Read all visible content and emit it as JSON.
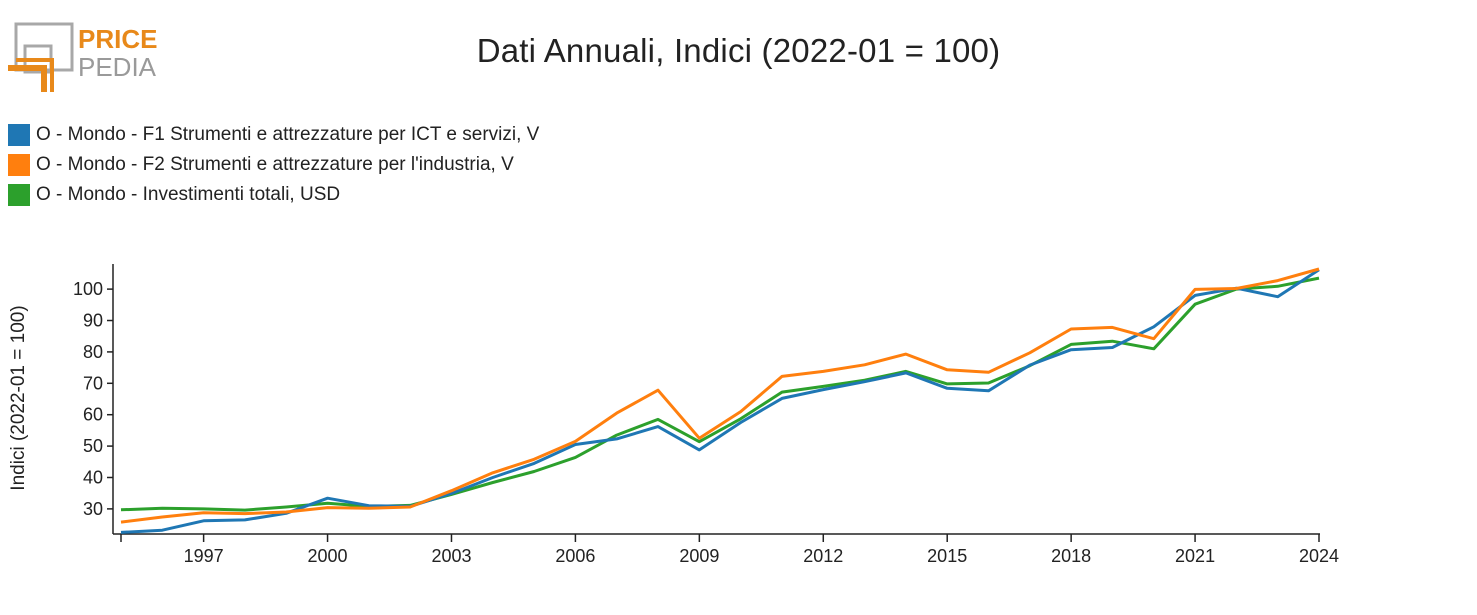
{
  "logo": {
    "line1": "PRICE",
    "line2": "PEDIA",
    "color_primary": "#E8891A",
    "color_secondary": "#9A9A9A"
  },
  "chart_data": {
    "type": "line",
    "title": "Dati Annuali, Indici (2022-01 = 100)",
    "ylabel": "Indici (2022-01 = 100)",
    "xlabel": "",
    "xlim": [
      1995,
      2024
    ],
    "ylim": [
      22,
      108
    ],
    "x_ticks": [
      1997,
      2000,
      2003,
      2006,
      2009,
      2012,
      2015,
      2018,
      2021,
      2024
    ],
    "y_ticks": [
      30,
      40,
      50,
      60,
      70,
      80,
      90,
      100
    ],
    "grid": false,
    "legend_position": "top-left",
    "x": [
      1995,
      1996,
      1997,
      1998,
      1999,
      2000,
      2001,
      2002,
      2003,
      2004,
      2005,
      2006,
      2007,
      2008,
      2009,
      2010,
      2011,
      2012,
      2013,
      2014,
      2015,
      2016,
      2017,
      2018,
      2019,
      2020,
      2021,
      2022,
      2023,
      2024
    ],
    "series": [
      {
        "name": "O - Mondo - F1 Strumenti e attrezzature per ICT e servizi, V",
        "color": "#1F77B4",
        "values": [
          22.5,
          23.2,
          26.2,
          26.5,
          28.6,
          33.4,
          31.0,
          30.8,
          34.9,
          40.0,
          44.5,
          50.5,
          52.3,
          56.2,
          48.8,
          57.5,
          65.2,
          68.0,
          70.5,
          73.3,
          68.4,
          67.6,
          75.8,
          80.7,
          81.4,
          88.0,
          98.0,
          100.3,
          97.6,
          106.2
        ]
      },
      {
        "name": "O - Mondo - F2 Strumenti e attrezzature per l'industria, V",
        "color": "#FF7F0E",
        "values": [
          25.8,
          27.4,
          28.8,
          28.5,
          29.0,
          30.4,
          30.2,
          30.6,
          35.8,
          41.5,
          45.8,
          51.5,
          60.5,
          67.8,
          52.5,
          61.0,
          72.2,
          73.8,
          75.9,
          79.3,
          74.3,
          73.5,
          79.7,
          87.3,
          87.8,
          84.2,
          99.9,
          100.2,
          102.7,
          106.4
        ]
      },
      {
        "name": "O - Mondo - Investimenti totali, USD",
        "color": "#2CA02C",
        "values": [
          29.7,
          30.2,
          30.0,
          29.6,
          30.6,
          31.8,
          30.8,
          31.1,
          34.6,
          38.4,
          41.9,
          46.4,
          53.5,
          58.5,
          51.4,
          58.7,
          67.2,
          69.0,
          71.0,
          73.8,
          69.8,
          70.1,
          75.6,
          82.4,
          83.4,
          81.0,
          95.2,
          100.0,
          100.9,
          103.5
        ]
      }
    ]
  }
}
